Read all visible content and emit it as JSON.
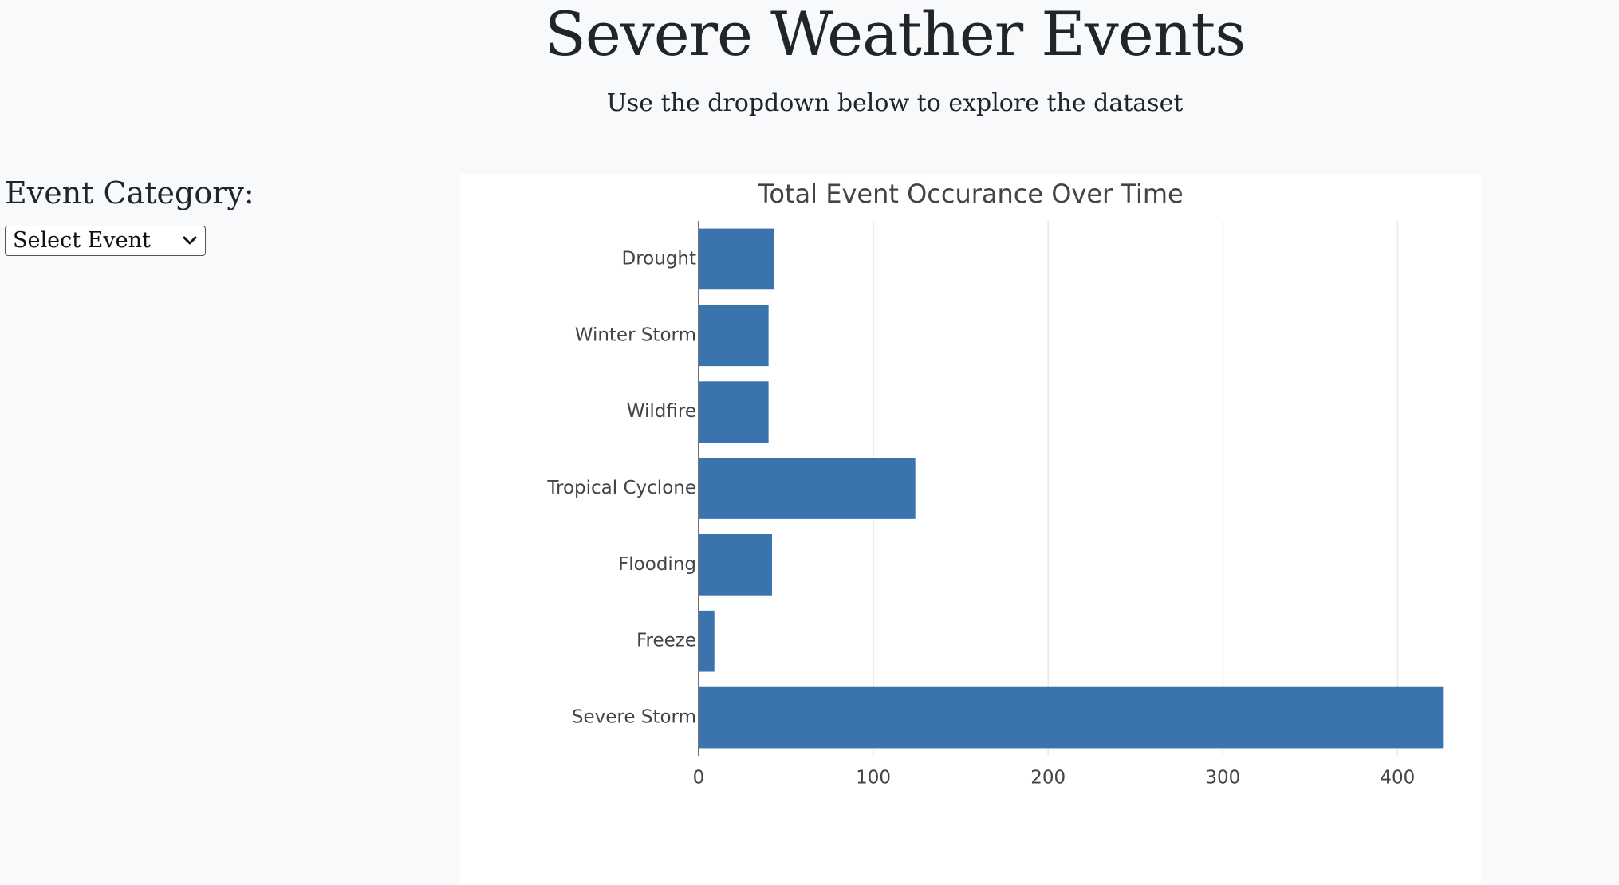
{
  "header": {
    "title": "Severe Weather Events",
    "subtitle": "Use the dropdown below to explore the dataset"
  },
  "sidebar": {
    "filter_label": "Event Category:",
    "select": {
      "selected": "Select Event",
      "icon": "chevron-down-icon"
    }
  },
  "colors": {
    "background": "#f8f9fa",
    "bar": "#3a73ad",
    "grid": "#e8e8e8",
    "text": "#444444"
  },
  "chart_data": {
    "type": "bar",
    "orientation": "horizontal",
    "title": "Total Event Occurance Over Time",
    "xlabel": "",
    "ylabel": "",
    "categories": [
      "Drought",
      "Winter Storm",
      "Wildfire",
      "Tropical Cyclone",
      "Flooding",
      "Freeze",
      "Severe Storm"
    ],
    "values": [
      43,
      40,
      40,
      124,
      42,
      9,
      426
    ],
    "xlim": [
      0,
      440
    ],
    "xticks": [
      0,
      100,
      200,
      300,
      400
    ],
    "grid": true,
    "legend": "none"
  }
}
